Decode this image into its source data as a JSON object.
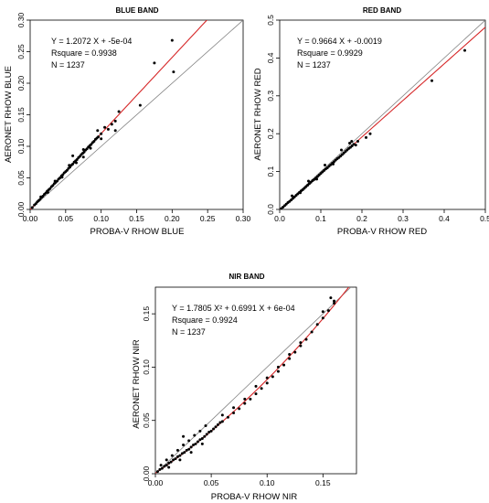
{
  "chart_data": [
    {
      "type": "scatter",
      "title": "BLUE BAND",
      "xlabel": "PROBA-V RHOW BLUE",
      "ylabel": "AERONET RHOW BLUE",
      "xlim": [
        0,
        0.3
      ],
      "ylim": [
        0,
        0.3
      ],
      "xticks": [
        "0.00",
        "0.05",
        "0.10",
        "0.15",
        "0.20",
        "0.25",
        "0.30"
      ],
      "yticks": [
        "0.00",
        "0.05",
        "0.10",
        "0.15",
        "0.20",
        "0.25",
        "0.30"
      ],
      "grid": false,
      "annotations": [
        "Y =  1.2072  X +  -5e-04",
        "Rsquare =  0.9938",
        "N =  1237"
      ],
      "fit": {
        "kind": "linear",
        "coefficients": [
          1.2072,
          -0.0005
        ],
        "color": "#d62728"
      },
      "identity_line": {
        "color": "#808080"
      },
      "series": [
        {
          "color": "#000000",
          "points": [
            [
              0.003,
              0.003
            ],
            [
              0.006,
              0.007
            ],
            [
              0.008,
              0.009
            ],
            [
              0.01,
              0.012
            ],
            [
              0.012,
              0.014
            ],
            [
              0.014,
              0.016
            ],
            [
              0.016,
              0.019
            ],
            [
              0.018,
              0.021
            ],
            [
              0.02,
              0.024
            ],
            [
              0.022,
              0.026
            ],
            [
              0.024,
              0.029
            ],
            [
              0.026,
              0.031
            ],
            [
              0.028,
              0.033
            ],
            [
              0.03,
              0.036
            ],
            [
              0.032,
              0.038
            ],
            [
              0.034,
              0.041
            ],
            [
              0.036,
              0.043
            ],
            [
              0.038,
              0.045
            ],
            [
              0.04,
              0.048
            ],
            [
              0.042,
              0.05
            ],
            [
              0.044,
              0.053
            ],
            [
              0.046,
              0.055
            ],
            [
              0.048,
              0.058
            ],
            [
              0.05,
              0.06
            ],
            [
              0.052,
              0.062
            ],
            [
              0.054,
              0.065
            ],
            [
              0.056,
              0.067
            ],
            [
              0.058,
              0.07
            ],
            [
              0.06,
              0.072
            ],
            [
              0.062,
              0.075
            ],
            [
              0.064,
              0.077
            ],
            [
              0.066,
              0.079
            ],
            [
              0.068,
              0.082
            ],
            [
              0.07,
              0.084
            ],
            [
              0.072,
              0.087
            ],
            [
              0.074,
              0.089
            ],
            [
              0.076,
              0.091
            ],
            [
              0.078,
              0.094
            ],
            [
              0.08,
              0.096
            ],
            [
              0.082,
              0.099
            ],
            [
              0.084,
              0.101
            ],
            [
              0.086,
              0.103
            ],
            [
              0.088,
              0.106
            ],
            [
              0.09,
              0.108
            ],
            [
              0.092,
              0.111
            ],
            [
              0.094,
              0.113
            ],
            [
              0.096,
              0.115
            ],
            [
              0.1,
              0.12
            ],
            [
              0.015,
              0.02
            ],
            [
              0.025,
              0.027
            ],
            [
              0.035,
              0.045
            ],
            [
              0.045,
              0.051
            ],
            [
              0.055,
              0.07
            ],
            [
              0.065,
              0.074
            ],
            [
              0.075,
              0.095
            ],
            [
              0.085,
              0.097
            ],
            [
              0.06,
              0.085
            ],
            [
              0.075,
              0.083
            ],
            [
              0.095,
              0.125
            ],
            [
              0.1,
              0.112
            ],
            [
              0.105,
              0.13
            ],
            [
              0.11,
              0.127
            ],
            [
              0.115,
              0.135
            ],
            [
              0.12,
              0.14
            ],
            [
              0.12,
              0.125
            ],
            [
              0.125,
              0.155
            ],
            [
              0.155,
              0.165
            ],
            [
              0.175,
              0.232
            ],
            [
              0.2,
              0.268
            ],
            [
              0.202,
              0.218
            ]
          ]
        }
      ]
    },
    {
      "type": "scatter",
      "title": "RED BAND",
      "xlabel": "PROBA-V RHOW RED",
      "ylabel": "AERONET RHOW RED",
      "xlim": [
        0,
        0.5
      ],
      "ylim": [
        0,
        0.5
      ],
      "xticks": [
        "0.0",
        "0.1",
        "0.2",
        "0.3",
        "0.4",
        "0.5"
      ],
      "yticks": [
        "0.0",
        "0.1",
        "0.2",
        "0.3",
        "0.4",
        "0.5"
      ],
      "grid": false,
      "annotations": [
        "Y =  0.9664  X +  -0.0019",
        "Rsquare =  0.9929",
        "N =  1237"
      ],
      "fit": {
        "kind": "linear",
        "coefficients": [
          0.9664,
          -0.0019
        ],
        "color": "#d62728"
      },
      "identity_line": {
        "color": "#808080"
      },
      "series": [
        {
          "color": "#000000",
          "points": [
            [
              0.004,
              0.002
            ],
            [
              0.008,
              0.006
            ],
            [
              0.012,
              0.01
            ],
            [
              0.016,
              0.014
            ],
            [
              0.02,
              0.018
            ],
            [
              0.024,
              0.021
            ],
            [
              0.028,
              0.025
            ],
            [
              0.032,
              0.029
            ],
            [
              0.036,
              0.033
            ],
            [
              0.04,
              0.037
            ],
            [
              0.044,
              0.041
            ],
            [
              0.048,
              0.045
            ],
            [
              0.052,
              0.049
            ],
            [
              0.056,
              0.052
            ],
            [
              0.06,
              0.056
            ],
            [
              0.064,
              0.06
            ],
            [
              0.068,
              0.064
            ],
            [
              0.072,
              0.068
            ],
            [
              0.076,
              0.072
            ],
            [
              0.08,
              0.076
            ],
            [
              0.084,
              0.079
            ],
            [
              0.088,
              0.083
            ],
            [
              0.092,
              0.087
            ],
            [
              0.096,
              0.091
            ],
            [
              0.1,
              0.095
            ],
            [
              0.104,
              0.099
            ],
            [
              0.108,
              0.103
            ],
            [
              0.112,
              0.107
            ],
            [
              0.116,
              0.11
            ],
            [
              0.12,
              0.114
            ],
            [
              0.124,
              0.118
            ],
            [
              0.128,
              0.122
            ],
            [
              0.132,
              0.126
            ],
            [
              0.136,
              0.13
            ],
            [
              0.14,
              0.134
            ],
            [
              0.144,
              0.137
            ],
            [
              0.148,
              0.141
            ],
            [
              0.152,
              0.145
            ],
            [
              0.156,
              0.149
            ],
            [
              0.16,
              0.153
            ],
            [
              0.164,
              0.157
            ],
            [
              0.168,
              0.161
            ],
            [
              0.172,
              0.164
            ],
            [
              0.176,
              0.168
            ],
            [
              0.18,
              0.172
            ],
            [
              0.03,
              0.036
            ],
            [
              0.05,
              0.044
            ],
            [
              0.07,
              0.075
            ],
            [
              0.09,
              0.08
            ],
            [
              0.11,
              0.117
            ],
            [
              0.13,
              0.12
            ],
            [
              0.15,
              0.157
            ],
            [
              0.17,
              0.175
            ],
            [
              0.175,
              0.18
            ],
            [
              0.185,
              0.17
            ],
            [
              0.19,
              0.18
            ],
            [
              0.21,
              0.19
            ],
            [
              0.22,
              0.2
            ],
            [
              0.37,
              0.34
            ],
            [
              0.45,
              0.42
            ]
          ]
        }
      ]
    },
    {
      "type": "scatter",
      "title": "NIR BAND",
      "xlabel": "PROBA-V RHOW NIR",
      "ylabel": "AERONET RHOW NIR",
      "xlim": [
        0,
        0.18
      ],
      "ylim": [
        0,
        0.175
      ],
      "xticks": [
        "0.00",
        "0.05",
        "0.10",
        "0.15"
      ],
      "yticks": [
        "0.00",
        "0.05",
        "0.10",
        "0.15"
      ],
      "grid": false,
      "annotations": [
        "Y =  1.7805  X² +  0.6991  X +  6e-04",
        "Rsquare =  0.9924",
        "N =  1237"
      ],
      "fit": {
        "kind": "quadratic",
        "coefficients": [
          1.7805,
          0.6991,
          0.0006
        ],
        "color": "#d62728"
      },
      "identity_line": {
        "color": "#808080"
      },
      "series": [
        {
          "color": "#000000",
          "points": [
            [
              0.002,
              0.002
            ],
            [
              0.004,
              0.004
            ],
            [
              0.006,
              0.005
            ],
            [
              0.008,
              0.007
            ],
            [
              0.01,
              0.008
            ],
            [
              0.012,
              0.01
            ],
            [
              0.014,
              0.011
            ],
            [
              0.016,
              0.013
            ],
            [
              0.018,
              0.014
            ],
            [
              0.02,
              0.016
            ],
            [
              0.022,
              0.017
            ],
            [
              0.024,
              0.019
            ],
            [
              0.026,
              0.02
            ],
            [
              0.028,
              0.022
            ],
            [
              0.03,
              0.023
            ],
            [
              0.032,
              0.025
            ],
            [
              0.034,
              0.027
            ],
            [
              0.036,
              0.028
            ],
            [
              0.038,
              0.03
            ],
            [
              0.04,
              0.032
            ],
            [
              0.042,
              0.033
            ],
            [
              0.044,
              0.035
            ],
            [
              0.046,
              0.037
            ],
            [
              0.048,
              0.039
            ],
            [
              0.05,
              0.04
            ],
            [
              0.052,
              0.042
            ],
            [
              0.054,
              0.044
            ],
            [
              0.056,
              0.046
            ],
            [
              0.058,
              0.048
            ],
            [
              0.06,
              0.049
            ],
            [
              0.005,
              0.008
            ],
            [
              0.01,
              0.013
            ],
            [
              0.015,
              0.017
            ],
            [
              0.02,
              0.022
            ],
            [
              0.025,
              0.027
            ],
            [
              0.03,
              0.031
            ],
            [
              0.035,
              0.036
            ],
            [
              0.04,
              0.04
            ],
            [
              0.012,
              0.006
            ],
            [
              0.022,
              0.013
            ],
            [
              0.032,
              0.02
            ],
            [
              0.042,
              0.028
            ],
            [
              0.025,
              0.035
            ],
            [
              0.045,
              0.045
            ],
            [
              0.065,
              0.053
            ],
            [
              0.07,
              0.057
            ],
            [
              0.075,
              0.061
            ],
            [
              0.08,
              0.066
            ],
            [
              0.085,
              0.07
            ],
            [
              0.09,
              0.075
            ],
            [
              0.095,
              0.08
            ],
            [
              0.1,
              0.085
            ],
            [
              0.105,
              0.091
            ],
            [
              0.11,
              0.096
            ],
            [
              0.115,
              0.102
            ],
            [
              0.12,
              0.108
            ],
            [
              0.125,
              0.114
            ],
            [
              0.13,
              0.12
            ],
            [
              0.135,
              0.126
            ],
            [
              0.14,
              0.133
            ],
            [
              0.145,
              0.14
            ],
            [
              0.15,
              0.146
            ],
            [
              0.155,
              0.153
            ],
            [
              0.16,
              0.16
            ],
            [
              0.08,
              0.07
            ],
            [
              0.09,
              0.082
            ],
            [
              0.1,
              0.09
            ],
            [
              0.11,
              0.1
            ],
            [
              0.12,
              0.112
            ],
            [
              0.13,
              0.123
            ],
            [
              0.07,
              0.062
            ],
            [
              0.06,
              0.055
            ],
            [
              0.15,
              0.152
            ],
            [
              0.16,
              0.162
            ],
            [
              0.157,
              0.165
            ]
          ]
        }
      ]
    }
  ]
}
